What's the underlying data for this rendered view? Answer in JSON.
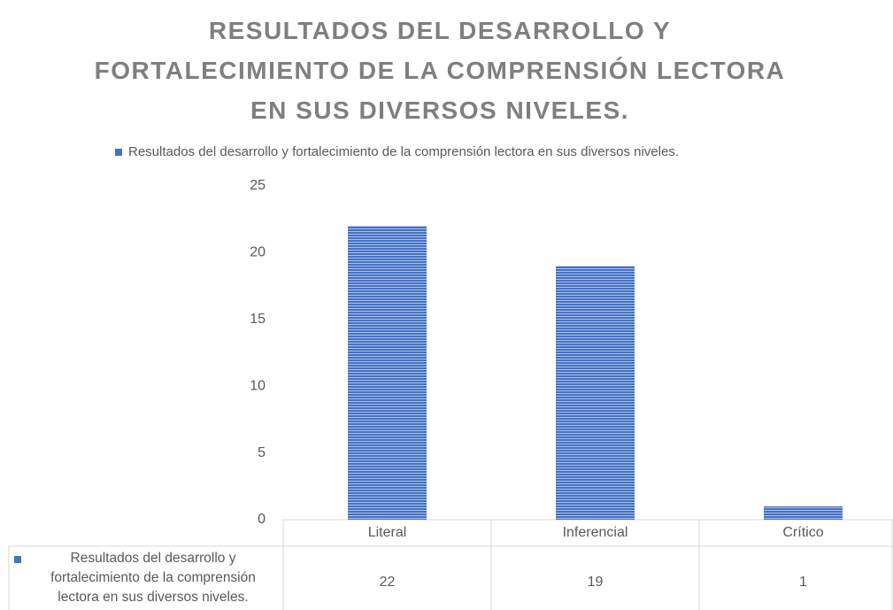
{
  "chart_data": {
    "type": "bar",
    "title": "RESULTADOS DEL DESARROLLO Y FORTALECIMIENTO DE LA COMPRENSIÓN LECTORA EN SUS DIVERSOS NIVELES.",
    "categories": [
      "Literal",
      "Inferencial",
      "Crítico"
    ],
    "series": [
      {
        "name": "Resultados del desarrollo y fortalecimiento de la comprensión lectora en sus diversos niveles.",
        "color": "#4472c4",
        "values": [
          22,
          19,
          1
        ]
      }
    ],
    "ylim": [
      0,
      25
    ],
    "yticks": [
      0,
      5,
      10,
      15,
      20,
      25
    ],
    "grid": false,
    "legend": "top",
    "data_table": true
  }
}
